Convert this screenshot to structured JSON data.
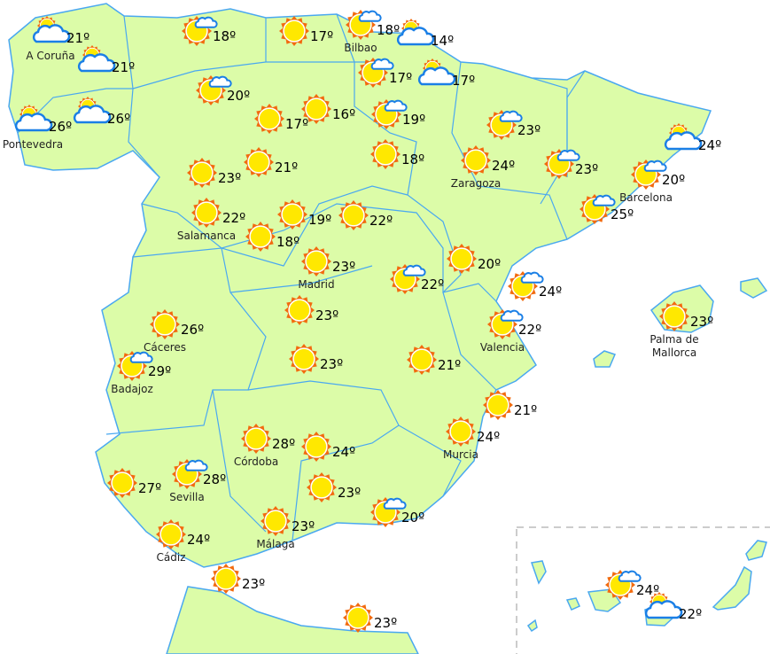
{
  "colors": {
    "land": "#dcfca8",
    "border": "#4aa8f0",
    "sun_rays": "#f26b0f",
    "sun_core": "#ffe800",
    "cloud_stroke": "#1a7fe6",
    "inset_border": "#bbbbbb"
  },
  "stations": [
    {
      "icon": "cloudy",
      "temp": "21º",
      "city": "A Coruña"
    },
    {
      "icon": "cloudy",
      "temp": "21º"
    },
    {
      "icon": "cloudy",
      "temp": "26º",
      "city": "Pontevedra"
    },
    {
      "icon": "cloudy",
      "temp": "26º"
    },
    {
      "icon": "sun-cloud",
      "temp": "18º"
    },
    {
      "icon": "sun",
      "temp": "17º"
    },
    {
      "icon": "sun-cloud",
      "temp": "18º",
      "city": "Bilbao"
    },
    {
      "icon": "cloudy",
      "temp": "14º"
    },
    {
      "icon": "sun-cloud",
      "temp": "17º"
    },
    {
      "icon": "cloudy",
      "temp": "17º"
    },
    {
      "icon": "sun-cloud",
      "temp": "20º"
    },
    {
      "icon": "sun",
      "temp": "17º"
    },
    {
      "icon": "sun",
      "temp": "16º"
    },
    {
      "icon": "sun-cloud",
      "temp": "19º"
    },
    {
      "icon": "sun-cloud",
      "temp": "23º"
    },
    {
      "icon": "cloudy",
      "temp": "24º"
    },
    {
      "icon": "sun",
      "temp": "18º"
    },
    {
      "icon": "sun",
      "temp": "23º"
    },
    {
      "icon": "sun",
      "temp": "21º"
    },
    {
      "icon": "sun",
      "temp": "24º",
      "city": "Zaragoza"
    },
    {
      "icon": "sun-cloud",
      "temp": "23º"
    },
    {
      "icon": "sun-cloud",
      "temp": "20º",
      "city": "Barcelona"
    },
    {
      "icon": "sun",
      "temp": "22º",
      "city": "Salamanca"
    },
    {
      "icon": "sun",
      "temp": "19º"
    },
    {
      "icon": "sun",
      "temp": "22º"
    },
    {
      "icon": "sun",
      "temp": "18º"
    },
    {
      "icon": "sun-cloud",
      "temp": "25º"
    },
    {
      "icon": "sun",
      "temp": "23º",
      "city": "Madrid"
    },
    {
      "icon": "sun",
      "temp": "20º"
    },
    {
      "icon": "sun-cloud",
      "temp": "22º"
    },
    {
      "icon": "sun-cloud",
      "temp": "24º"
    },
    {
      "icon": "sun",
      "temp": "23º",
      "city": "Palma de Mallorca"
    },
    {
      "icon": "sun",
      "temp": "26º",
      "city": "Cáceres"
    },
    {
      "icon": "sun",
      "temp": "23º"
    },
    {
      "icon": "sun-cloud",
      "temp": "22º",
      "city": "Valencia"
    },
    {
      "icon": "sun-cloud",
      "temp": "29º",
      "city": "Badajoz"
    },
    {
      "icon": "sun",
      "temp": "23º"
    },
    {
      "icon": "sun",
      "temp": "21º"
    },
    {
      "icon": "sun",
      "temp": "21º"
    },
    {
      "icon": "sun",
      "temp": "28º",
      "city": "Córdoba"
    },
    {
      "icon": "sun",
      "temp": "24º"
    },
    {
      "icon": "sun",
      "temp": "24º",
      "city": "Murcia"
    },
    {
      "icon": "sun",
      "temp": "27º"
    },
    {
      "icon": "sun-cloud",
      "temp": "28º",
      "city": "Sevilla"
    },
    {
      "icon": "sun",
      "temp": "23º"
    },
    {
      "icon": "sun-cloud",
      "temp": "20º"
    },
    {
      "icon": "sun",
      "temp": "23º",
      "city": "Málaga"
    },
    {
      "icon": "sun",
      "temp": "24º",
      "city": "Cádiz"
    },
    {
      "icon": "sun",
      "temp": "23º"
    },
    {
      "icon": "sun",
      "temp": "23º"
    },
    {
      "icon": "sun-cloud",
      "temp": "24º"
    },
    {
      "icon": "cloudy",
      "temp": "22º"
    }
  ]
}
